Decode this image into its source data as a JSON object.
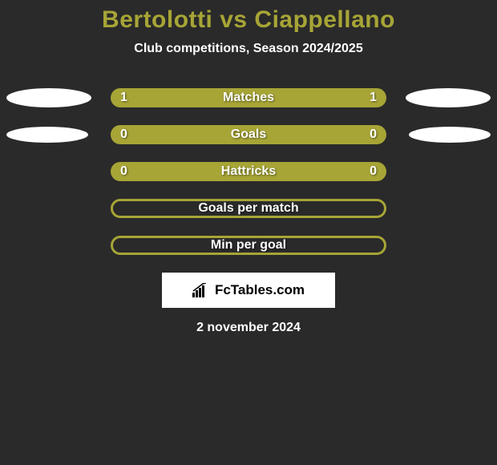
{
  "title": {
    "text": "Bertolotti vs Ciappellano",
    "color": "#a7a536",
    "fontsize": 30
  },
  "subtitle": {
    "text": "Club competitions, Season 2024/2025",
    "color": "#ffffff",
    "fontsize": 16
  },
  "bar_style": {
    "fill_color": "#a7a536",
    "outline_color": "#a7a536",
    "outline_width": 3,
    "text_color": "#ffffff",
    "label_fontsize": 16,
    "value_fontsize": 16
  },
  "ellipses": {
    "color": "#ffffff",
    "row0": {
      "left_w": 106,
      "left_h": 24,
      "right_w": 106,
      "right_h": 24
    },
    "row1": {
      "left_w": 102,
      "left_h": 20,
      "right_w": 102,
      "right_h": 20
    }
  },
  "rows": [
    {
      "label": "Matches",
      "left": "1",
      "right": "1",
      "style": "fill",
      "ellipses": true,
      "ellipse_key": "row0"
    },
    {
      "label": "Goals",
      "left": "0",
      "right": "0",
      "style": "fill",
      "ellipses": true,
      "ellipse_key": "row1"
    },
    {
      "label": "Hattricks",
      "left": "0",
      "right": "0",
      "style": "fill",
      "ellipses": false
    },
    {
      "label": "Goals per match",
      "left": "",
      "right": "",
      "style": "outline",
      "ellipses": false
    },
    {
      "label": "Min per goal",
      "left": "",
      "right": "",
      "style": "outline",
      "ellipses": false
    }
  ],
  "brand": {
    "text": "FcTables.com",
    "bg": "#ffffff",
    "text_color": "#000000",
    "fontsize": 17
  },
  "date": {
    "text": "2 november 2024",
    "color": "#ffffff",
    "fontsize": 16
  },
  "background_color": "#2a2a2a"
}
